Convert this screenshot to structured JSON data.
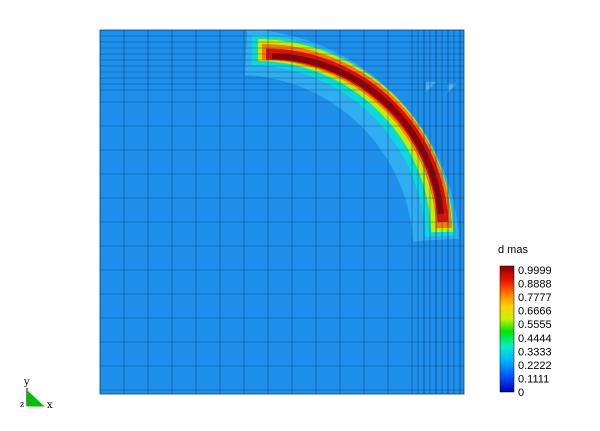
{
  "chart_data": {
    "type": "heatmap",
    "title": "",
    "colorbar": {
      "label": "d mas",
      "min": 0,
      "max": 0.9999,
      "ticks": [
        "0.9999",
        "0.8888",
        "0.7777",
        "0.6666",
        "0.5555",
        "0.4444",
        "0.3333",
        "0.2222",
        "0.1111",
        "0"
      ]
    },
    "field": {
      "description_values": "scalar field d mas on adaptively refined square mesh",
      "background_value": 0.2,
      "arc_peak_value": 0.9999,
      "arc_quadrant": "top-right"
    },
    "triad": {
      "y_label": "y",
      "x_label": "x",
      "z_label": "z"
    },
    "colors": {
      "background_field": "#1E8FEA",
      "mesh_lines": "#0B3E78",
      "triad": "#00C000",
      "colormap": [
        "#0000B4",
        "#0050FF",
        "#00B4FF",
        "#00F0C8",
        "#00E600",
        "#C8F000",
        "#FFD200",
        "#FF7800",
        "#F01400",
        "#8C0000"
      ]
    }
  }
}
